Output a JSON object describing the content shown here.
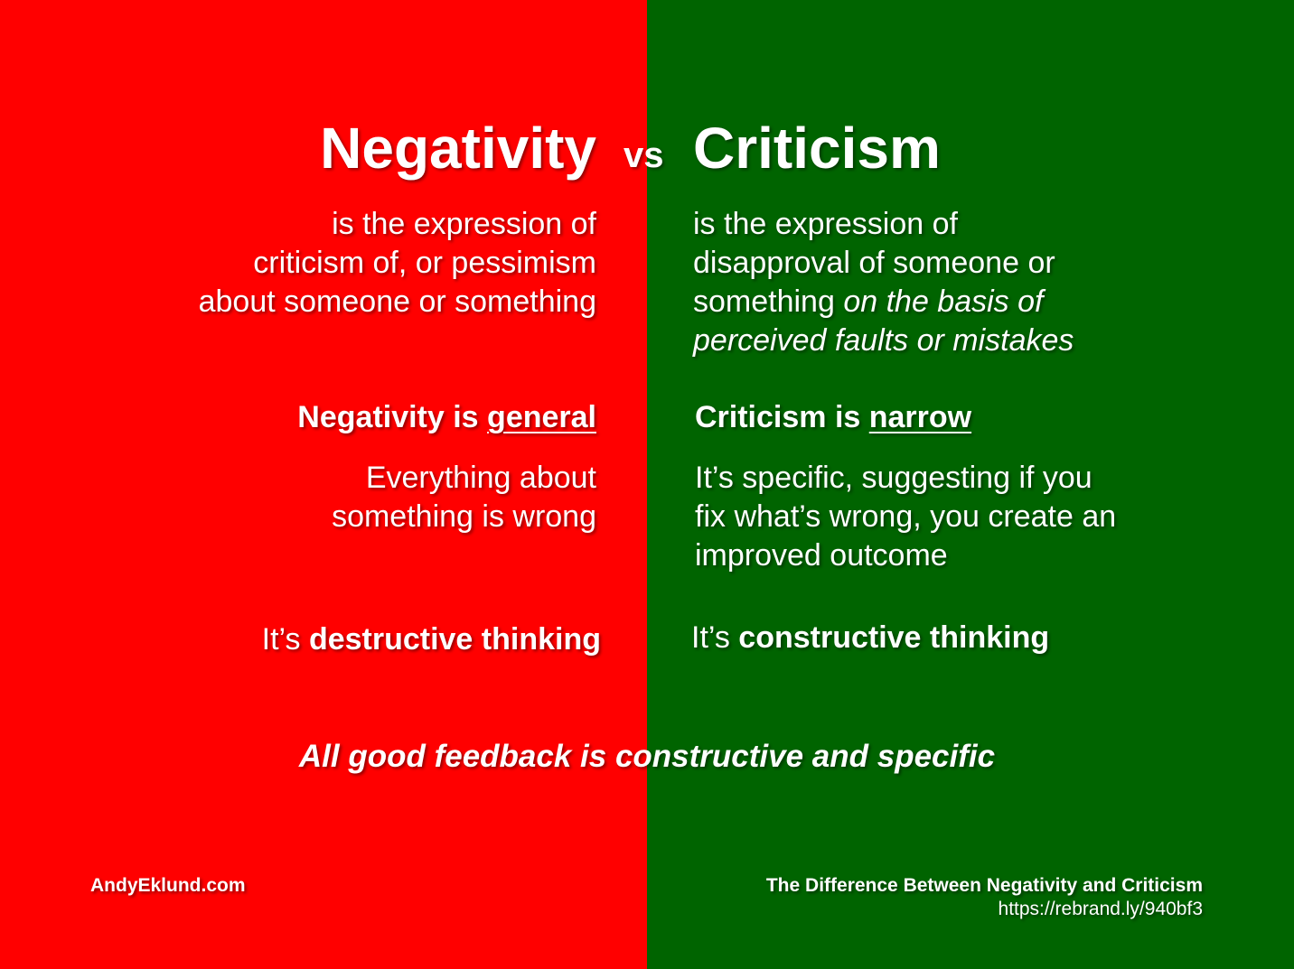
{
  "colors": {
    "negativity_bg": "#ff0000",
    "criticism_bg": "#006400",
    "text": "#ffffff"
  },
  "left": {
    "title": "Negativity",
    "definition": [
      "is the expression of",
      "criticism of, or pessimism",
      "about someone or something"
    ],
    "heading_prefix": "Negativity is ",
    "heading_key": "general",
    "description": [
      "Everything about",
      "something is wrong"
    ],
    "thinking_prefix": "It’s ",
    "thinking_bold": "destructive thinking"
  },
  "vs": "vs",
  "right": {
    "title": "Criticism",
    "definition_line1": "is the expression of",
    "definition_line2": "disapproval of someone or",
    "definition_line3_plain": "something ",
    "definition_line3_italic": "on the basis of",
    "definition_line4_italic": "perceived faults or mistakes",
    "heading_prefix": "Criticism is ",
    "heading_key": "narrow",
    "description": [
      "It’s specific, suggesting if you",
      "fix what’s wrong, you create an",
      "improved outcome"
    ],
    "thinking_prefix": "It’s ",
    "thinking_bold": "constructive thinking"
  },
  "quote": "All good feedback is constructive and specific",
  "footer": {
    "site": "AndyEklund.com",
    "article_title": "The Difference Between Negativity and Criticism",
    "article_url": "https://rebrand.ly/940bf3"
  }
}
